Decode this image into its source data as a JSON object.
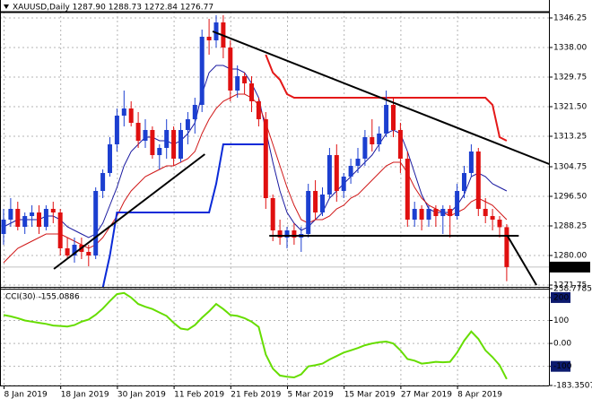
{
  "chart_data": [
    {
      "type": "candlestick",
      "title": "XAUUSD,Daily 1287.90 1288.73 1272.84 1276.77",
      "categories": [
        "8 Jan 2019",
        null,
        null,
        null,
        null,
        null,
        null,
        null,
        "18 Jan 2019",
        null,
        null,
        null,
        null,
        null,
        null,
        null,
        "30 Jan 2019",
        null,
        null,
        null,
        null,
        null,
        null,
        null,
        "11 Feb 2019",
        null,
        null,
        null,
        null,
        null,
        null,
        null,
        "21 Feb 2019",
        null,
        null,
        null,
        null,
        null,
        null,
        null,
        "5 Mar 2019",
        null,
        null,
        null,
        null,
        null,
        null,
        null,
        "15 Mar 2019",
        null,
        null,
        null,
        null,
        null,
        null,
        null,
        "27 Mar 2019",
        null,
        null,
        null,
        null,
        null,
        null,
        null,
        "8 Apr 2019",
        null,
        null,
        null,
        null,
        null,
        null,
        null
      ],
      "open": [
        1286,
        1290,
        1293,
        1288,
        1291,
        1292,
        1288,
        1293,
        1292,
        1282,
        1280,
        1283,
        1281,
        1280,
        1298,
        1303,
        1311,
        1319,
        1321,
        1317,
        1312,
        1315,
        1308,
        1310,
        1315,
        1307,
        1315,
        1318,
        1322,
        1341,
        1340,
        1345,
        1338,
        1326,
        1330,
        1328,
        1323,
        1318,
        1296,
        1287,
        1285,
        1287,
        1285,
        1286,
        1298,
        1292,
        1297,
        1308,
        1298,
        1302,
        1305,
        1307,
        1313,
        1311,
        1314,
        1322,
        1315,
        1307,
        1290,
        1293,
        1290,
        1293,
        1291,
        1293,
        1291,
        1298,
        1303,
        1309,
        1293,
        1291,
        1290,
        1287.9
      ],
      "high": [
        1293,
        1296,
        1295,
        1292,
        1294,
        1294,
        1294,
        1295,
        1293,
        1285,
        1285,
        1285,
        1283,
        1299,
        1304,
        1313,
        1321,
        1326,
        1323,
        1320,
        1318,
        1316,
        1311,
        1318,
        1316,
        1317,
        1320,
        1324,
        1343,
        1346,
        1347,
        1347,
        1340,
        1333,
        1331,
        1330,
        1324,
        1320,
        1297,
        1290,
        1288,
        1289,
        1288,
        1300,
        1301,
        1299,
        1310,
        1311,
        1303,
        1307,
        1310,
        1315,
        1318,
        1316,
        1326,
        1324,
        1317,
        1309,
        1295,
        1294,
        1294,
        1294,
        1294,
        1294,
        1300,
        1305,
        1311,
        1310,
        1296,
        1293,
        1291,
        1288.73
      ],
      "low": [
        1283,
        1288,
        1287,
        1286,
        1288,
        1286,
        1287,
        1289,
        1280,
        1279,
        1278,
        1279,
        1277,
        1279,
        1296,
        1302,
        1309,
        1316,
        1316,
        1310,
        1310,
        1307,
        1304,
        1307,
        1305,
        1306,
        1311,
        1314,
        1320,
        1336,
        1338,
        1335,
        1323,
        1324,
        1325,
        1320,
        1316,
        1293,
        1284,
        1283,
        1282,
        1283,
        1281,
        1285,
        1290,
        1291,
        1296,
        1295,
        1296,
        1300,
        1303,
        1305,
        1309,
        1309,
        1313,
        1313,
        1303,
        1288,
        1288,
        1287,
        1288,
        1288,
        1286,
        1285,
        1290,
        1296,
        1302,
        1291,
        1289,
        1287,
        1285,
        1272.84
      ],
      "close": [
        1290,
        1293,
        1288,
        1291,
        1292,
        1288,
        1293,
        1292,
        1282,
        1280,
        1283,
        1281,
        1280,
        1298,
        1303,
        1311,
        1319,
        1321,
        1317,
        1312,
        1315,
        1308,
        1310,
        1315,
        1307,
        1315,
        1318,
        1322,
        1341,
        1340,
        1345,
        1338,
        1326,
        1330,
        1328,
        1323,
        1318,
        1296,
        1287,
        1285,
        1287,
        1285,
        1286,
        1298,
        1292,
        1297,
        1308,
        1298,
        1302,
        1305,
        1307,
        1313,
        1311,
        1314,
        1322,
        1315,
        1307,
        1290,
        1293,
        1290,
        1293,
        1291,
        1293,
        1291,
        1298,
        1303,
        1309,
        1293,
        1291,
        1290,
        1287.9,
        1276.77
      ],
      "up_color": "#1c3fd0",
      "down_color": "#e01010",
      "overlays": [
        {
          "color": "#1a1aa0",
          "width": 1,
          "values": [
            1288,
            1289,
            1290,
            1290,
            1290,
            1290,
            1291,
            1291,
            1290,
            1288,
            1287,
            1286,
            1285,
            1286,
            1289,
            1294,
            1299,
            1305,
            1309,
            1311,
            1313,
            1313,
            1312,
            1312,
            1311,
            1312,
            1314,
            1317,
            1325,
            1331,
            1333,
            1333,
            1332,
            1332,
            1331,
            1328,
            1324,
            1315,
            1306,
            1298,
            1292,
            1289,
            1287,
            1288,
            1290,
            1292,
            1296,
            1298,
            1300,
            1302,
            1304,
            1306,
            1308,
            1311,
            1314,
            1315,
            1314,
            1309,
            1303,
            1297,
            1293,
            1292,
            1292,
            1292,
            1294,
            1297,
            1302,
            1303,
            1302,
            1300,
            1299,
            1298
          ]
        },
        {
          "color": "#d01818",
          "width": 1,
          "values": [
            1278,
            1280,
            1282,
            1283,
            1284,
            1285,
            1286,
            1286,
            1286,
            1285,
            1284,
            1283,
            1282,
            1283,
            1285,
            1288,
            1291,
            1295,
            1298,
            1300,
            1302,
            1303,
            1304,
            1305,
            1305,
            1306,
            1307,
            1309,
            1314,
            1318,
            1321,
            1323,
            1324,
            1325,
            1325,
            1324,
            1322,
            1317,
            1311,
            1305,
            1299,
            1294,
            1290,
            1289,
            1290,
            1290,
            1291,
            1293,
            1294,
            1296,
            1297,
            1299,
            1301,
            1303,
            1305,
            1306,
            1306,
            1303,
            1299,
            1296,
            1294,
            1293,
            1292,
            1291,
            1292,
            1293,
            1295,
            1296,
            1295,
            1294,
            1292,
            1290
          ]
        },
        {
          "color": "#0a2ad8",
          "width": 2,
          "values": [
            null,
            null,
            null,
            null,
            null,
            null,
            null,
            null,
            null,
            null,
            null,
            null,
            null,
            null,
            1271,
            1280,
            1292,
            1292,
            1292,
            1292,
            1292,
            1292,
            1292,
            1292,
            1292,
            1292,
            1292,
            1292,
            1292,
            1292,
            1300,
            1311,
            1311,
            1311,
            1311,
            1311,
            1311,
            1311,
            null,
            null,
            null,
            null,
            null,
            null,
            null,
            null,
            null,
            null,
            null,
            null,
            null,
            null,
            null,
            null,
            null,
            null,
            null,
            null,
            null,
            null,
            null,
            null,
            null,
            null,
            null,
            null,
            null,
            null,
            null,
            null,
            null,
            null
          ]
        },
        {
          "color": "#e41818",
          "width": 2,
          "values": [
            null,
            null,
            null,
            null,
            null,
            null,
            null,
            null,
            null,
            null,
            null,
            null,
            null,
            null,
            null,
            null,
            null,
            null,
            null,
            null,
            null,
            null,
            null,
            null,
            null,
            null,
            null,
            null,
            null,
            null,
            null,
            null,
            null,
            null,
            null,
            null,
            null,
            1336,
            1331,
            1329,
            1325,
            1324,
            1324,
            1324,
            1324,
            1324,
            1324,
            1324,
            1324,
            1324,
            1324,
            1324,
            1324,
            1324,
            1324,
            1324,
            1324,
            1324,
            1324,
            1324,
            1324,
            1324,
            1324,
            1324,
            1324,
            1324,
            1324,
            1324,
            1324,
            1322,
            1313,
            1312
          ]
        }
      ],
      "trendlines": [
        {
          "x1": 7.1,
          "y1": 1276.25,
          "x2": 28.4,
          "y2": 1308.25
        },
        {
          "x1": 29.5,
          "y1": 1342.5,
          "x2": 77,
          "y2": 1305.5
        },
        {
          "x1": 37.5,
          "y1": 1285.5,
          "x2": 72.7,
          "y2": 1285.5
        },
        {
          "x1": 71.1,
          "y1": 1285.5,
          "x2": 75.2,
          "y2": 1271.75
        }
      ],
      "last_price": 1276.77,
      "ylim": [
        1271.25,
        1348.0
      ],
      "yticks": [
        1346.25,
        {
          "value": 1338,
          "label": "1338.00"
        },
        1329.75,
        {
          "value": 1321.5,
          "label": "1321.50"
        },
        1313.25,
        1304.75,
        {
          "value": 1296.5,
          "label": "1296.50"
        },
        1288.25,
        {
          "value": 1280,
          "label": "1280.00"
        },
        1271.75
      ],
      "grid": true
    },
    {
      "type": "line",
      "title": "CCI(30) -155.0886",
      "color": "#66dd00",
      "values": [
        124,
        118,
        110,
        100,
        95,
        90,
        85,
        78,
        76,
        74,
        80,
        95,
        104,
        125,
        152,
        185,
        215,
        220,
        200,
        172,
        160,
        150,
        135,
        120,
        90,
        65,
        60,
        80,
        112,
        140,
        172,
        150,
        124,
        120,
        110,
        95,
        72,
        -48,
        -110,
        -140,
        -145,
        -148,
        -135,
        -100,
        -95,
        -88,
        -70,
        -55,
        -40,
        -30,
        -20,
        -8,
        0,
        5,
        8,
        0,
        -30,
        -68,
        -75,
        -88,
        -85,
        -80,
        -82,
        -80,
        -40,
        12,
        52,
        20,
        -30,
        -60,
        -95,
        -155.0886
      ],
      "ylim": [
        -183.3507,
        238.7785
      ],
      "yticks": [
        238.7785,
        200,
        100,
        {
          "value": 0,
          "label": "0.00"
        },
        -100,
        -183.3507
      ],
      "marked_levels": [
        200,
        -100
      ],
      "grid": true
    }
  ]
}
